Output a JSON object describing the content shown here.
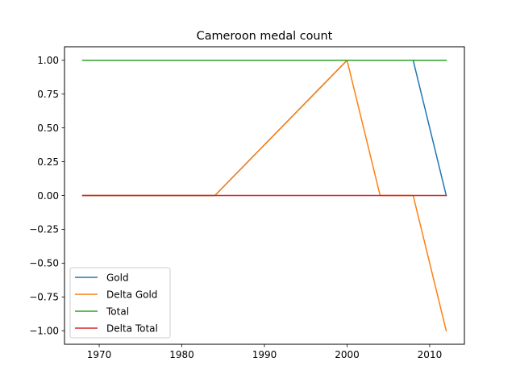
{
  "chart_data": {
    "type": "line",
    "title": "Cameroon medal count",
    "xlabel": "",
    "ylabel": "",
    "xlim": [
      1965.8,
      2014.2
    ],
    "ylim": [
      -1.1,
      1.1
    ],
    "xticks": [
      1970,
      1980,
      1990,
      2000,
      2010
    ],
    "yticks": [
      1.0,
      0.75,
      0.5,
      0.25,
      0.0,
      -0.25,
      -0.5,
      -0.75,
      -1.0
    ],
    "ytick_labels": [
      "1.00",
      "0.75",
      "0.50",
      "0.25",
      "0.00",
      "−0.25",
      "−0.50",
      "−0.75",
      "−1.00"
    ],
    "grid": false,
    "legend_position": "lower-left",
    "series": [
      {
        "name": "Gold",
        "color": "#1f77b4",
        "points": [
          [
            1968,
            0
          ],
          [
            1984,
            0
          ],
          [
            2000,
            1
          ],
          [
            2004,
            1
          ],
          [
            2008,
            1
          ],
          [
            2012,
            0
          ]
        ]
      },
      {
        "name": "Delta Gold",
        "color": "#ff7f0e",
        "points": [
          [
            1968,
            0
          ],
          [
            1984,
            0
          ],
          [
            2000,
            1
          ],
          [
            2004,
            0
          ],
          [
            2008,
            0
          ],
          [
            2012,
            -1
          ]
        ]
      },
      {
        "name": "Total",
        "color": "#2ca02c",
        "points": [
          [
            1968,
            1
          ],
          [
            1984,
            1
          ],
          [
            2000,
            1
          ],
          [
            2004,
            1
          ],
          [
            2008,
            1
          ],
          [
            2012,
            1
          ]
        ]
      },
      {
        "name": "Delta Total",
        "color": "#d62728",
        "points": [
          [
            1968,
            0
          ],
          [
            1984,
            0
          ],
          [
            2000,
            0
          ],
          [
            2004,
            0
          ],
          [
            2008,
            0
          ],
          [
            2012,
            0
          ]
        ]
      }
    ]
  }
}
